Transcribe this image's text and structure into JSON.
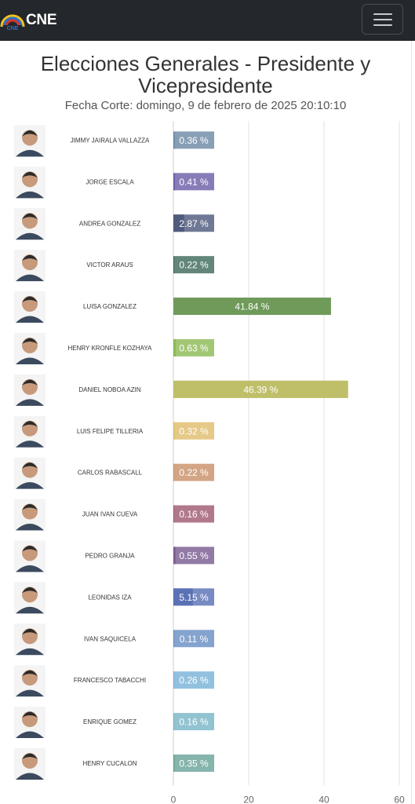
{
  "navbar": {
    "brand": "CNE"
  },
  "title": "Elecciones Generales - Presidente y Vicepresidente",
  "subtitle": "Fecha Corte: domingo, 9 de febrero de 2025 20:10:10",
  "chart_data": {
    "type": "bar",
    "orientation": "horizontal",
    "categories": [
      "JIMMY JAIRALA VALLAZZA",
      "JORGE ESCALA",
      "ANDREA GONZALEZ",
      "VICTOR ARAUS",
      "LUISA GONZALEZ",
      "HENRY KRONFLE KOZHAYA",
      "DANIEL NOBOA AZIN",
      "LUIS FELIPE TILLERIA",
      "CARLOS RABASCALL",
      "JUAN IVAN CUEVA",
      "PEDRO GRANJA",
      "LEONIDAS IZA",
      "IVAN SAQUICELA",
      "FRANCESCO TABACCHI",
      "ENRIQUE GOMEZ",
      "HENRY CUCALON"
    ],
    "values": [
      0.36,
      0.41,
      2.87,
      0.22,
      41.84,
      0.63,
      46.39,
      0.32,
      0.22,
      0.16,
      0.55,
      5.15,
      0.11,
      0.26,
      0.16,
      0.35
    ],
    "labels": [
      "0.36 %",
      "0.41 %",
      "2.87 %",
      "0.22 %",
      "41.84 %",
      "0.63 %",
      "46.39 %",
      "0.32 %",
      "0.22 %",
      "0.16 %",
      "0.55 %",
      "5.15 %",
      "0.11 %",
      "0.26 %",
      "0.16 %",
      "0.35 %"
    ],
    "colors": [
      "#6e8aa6",
      "#6e5fa8",
      "#4f5a7c",
      "#3f6b5c",
      "#6f9a5a",
      "#8dbb55",
      "#bfbf6a",
      "#e0bd6c",
      "#c9916a",
      "#a05a72",
      "#7a5d92",
      "#5a72b5",
      "#6a8fc4",
      "#7ab3d8",
      "#7ab6c6",
      "#6aa59a"
    ],
    "x_ticks": [
      "0",
      "20",
      "40",
      "60"
    ],
    "xlim": [
      0,
      60
    ],
    "grid": true
  }
}
